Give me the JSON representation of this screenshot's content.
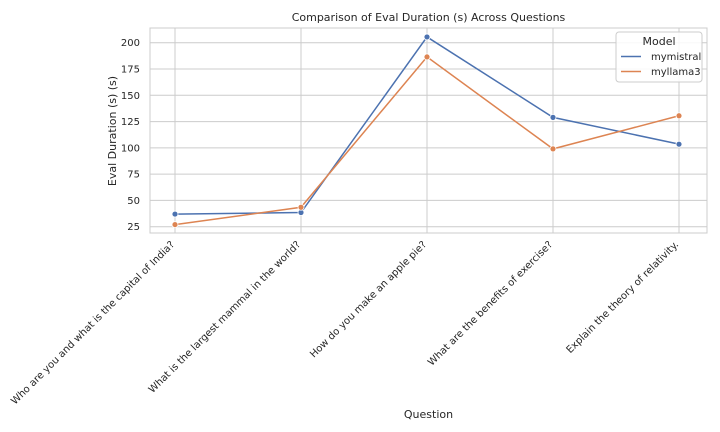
{
  "chart_data": {
    "type": "line",
    "title": "Comparison of Eval Duration (s) Across Questions",
    "xlabel": "Question",
    "ylabel": "Eval Duration (s) (s)",
    "categories": [
      "Who are you and what is the capital of India?",
      "What is the largest mammal in the world?",
      "How do you make an apple pie?",
      "What are the benefits of exercise?",
      "Explain the theory of relativity."
    ],
    "series": [
      {
        "name": "mymistral",
        "color": "#4c72b0",
        "values": [
          37,
          38.5,
          205.5,
          129,
          103.5
        ]
      },
      {
        "name": "myllama3",
        "color": "#dd8452",
        "values": [
          27,
          43.5,
          186.5,
          99,
          130.5
        ]
      }
    ],
    "ylim": [
      19,
      214
    ],
    "yticks": [
      25,
      50,
      75,
      100,
      125,
      150,
      175,
      200
    ],
    "grid": true,
    "legend": {
      "title": "Model",
      "placement": "top-right"
    }
  }
}
